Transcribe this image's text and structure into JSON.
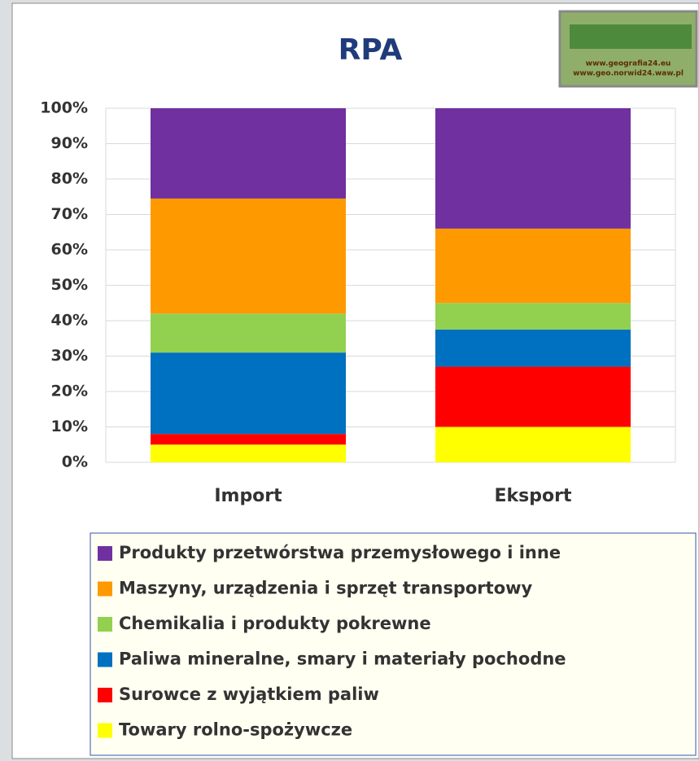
{
  "chart_data": {
    "type": "stacked_bar",
    "title": "RPA",
    "logo": {
      "lines": [
        "www.geografia24.eu",
        "www.geo.norwid24.waw.pl"
      ]
    },
    "categories": [
      "Import",
      "Eksport"
    ],
    "series": [
      {
        "name": "Towary  rolno-spożywcze",
        "color": "#ffff00",
        "values": [
          5,
          10
        ]
      },
      {
        "name": "Surowce z wyjątkiem paliw",
        "color": "#ff0000",
        "values": [
          3,
          17
        ]
      },
      {
        "name": "Paliwa mineralne, smary i materiały pochodne",
        "color": "#0070c0",
        "values": [
          23,
          10.5
        ]
      },
      {
        "name": "Chemikalia i produkty pokrewne",
        "color": "#92d050",
        "values": [
          11,
          7.5
        ]
      },
      {
        "name": "Maszyny, urządzenia i sprzęt transportowy",
        "color": "#ff9900",
        "values": [
          32.5,
          21
        ]
      },
      {
        "name": "Produkty przetwórstwa przemysłowego i inne",
        "color": "#7030a0",
        "values": [
          25.5,
          34
        ]
      }
    ],
    "ylim": [
      0,
      100
    ],
    "yticks": [
      {
        "value": 0,
        "label": "0%"
      },
      {
        "value": 10,
        "label": "10%"
      },
      {
        "value": 20,
        "label": "20%"
      },
      {
        "value": 30,
        "label": "30%"
      },
      {
        "value": 40,
        "label": "40%"
      },
      {
        "value": 50,
        "label": "50%"
      },
      {
        "value": 60,
        "label": "60%"
      },
      {
        "value": 70,
        "label": "70%"
      },
      {
        "value": 80,
        "label": "80%"
      },
      {
        "value": 90,
        "label": "90%"
      },
      {
        "value": 100,
        "label": "100%"
      }
    ],
    "grid": true
  }
}
